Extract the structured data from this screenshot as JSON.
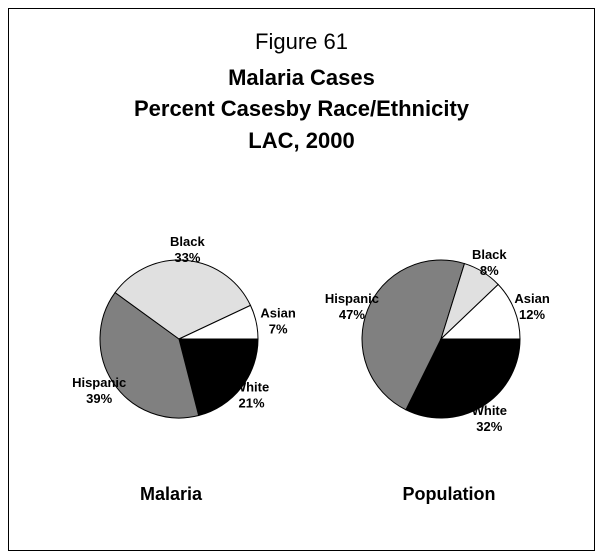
{
  "figure_label": "Figure 61",
  "title_lines": [
    "Malaria Cases",
    "Percent Casesby Race/Ethnicity",
    "LAC, 2000"
  ],
  "colors": {
    "Black": "#e0e0e0",
    "Asian": "#ffffff",
    "White": "#000000",
    "Hispanic": "#808080",
    "outline": "#000000"
  },
  "chart_data": [
    {
      "type": "pie",
      "title": "Malaria",
      "slices": [
        {
          "label": "Black",
          "value": 33,
          "value_text": "33%"
        },
        {
          "label": "Asian",
          "value": 7,
          "value_text": "7%"
        },
        {
          "label": "White",
          "value": 21,
          "value_text": "21%"
        },
        {
          "label": "Hispanic",
          "value": 39,
          "value_text": "39%"
        }
      ]
    },
    {
      "type": "pie",
      "title": "Population",
      "slices": [
        {
          "label": "Black",
          "value": 8,
          "value_text": "8%"
        },
        {
          "label": "Asian",
          "value": 12,
          "value_text": "12%"
        },
        {
          "label": "White",
          "value": 32,
          "value_text": "32%"
        },
        {
          "label": "Hispanic",
          "value": 47,
          "value_text": "47%"
        }
      ]
    }
  ]
}
